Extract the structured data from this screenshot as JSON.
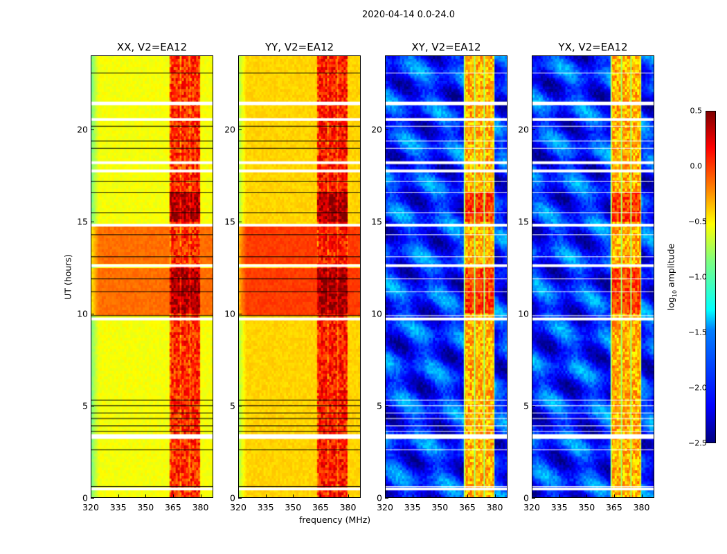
{
  "chart_data": {
    "type": "heatmap",
    "title": "2020-04-14 0.0-24.0",
    "xlabel": "frequency (MHz)",
    "ylabel": "UT (hours)",
    "xlim": [
      320,
      387
    ],
    "ylim": [
      0,
      24
    ],
    "x_ticks": [
      "320",
      "335",
      "350",
      "365",
      "380"
    ],
    "y_ticks": [
      "0",
      "5",
      "10",
      "15",
      "20"
    ],
    "colorbar": {
      "label_main": "log",
      "label_sub": "10",
      "label_rest": " amplitude",
      "colormap": "jet",
      "range": [
        -2.5,
        0.5
      ],
      "ticks": [
        "0.5",
        "0.0",
        "−0.5",
        "−1.0",
        "−1.5",
        "−2.0",
        "−2.5"
      ]
    },
    "panels": [
      {
        "title": "XX, V2=EA12",
        "baseline_log_amp": -0.65,
        "band_log_amp": 0.0
      },
      {
        "title": "YY, V2=EA12",
        "baseline_log_amp": -0.5,
        "band_log_amp": 0.05
      },
      {
        "title": "XY, V2=EA12",
        "baseline_log_amp": -2.0,
        "band_log_amp": -0.4
      },
      {
        "title": "YX, V2=EA12",
        "baseline_log_amp": -2.0,
        "band_log_amp": -0.4
      }
    ],
    "strong_band_MHz": [
      363,
      380
    ],
    "flagged_hours": [
      0.45,
      3.25,
      3.35,
      9.7,
      12.6,
      14.8,
      17.75,
      18.2,
      20.55,
      21.4,
      21.45
    ]
  }
}
